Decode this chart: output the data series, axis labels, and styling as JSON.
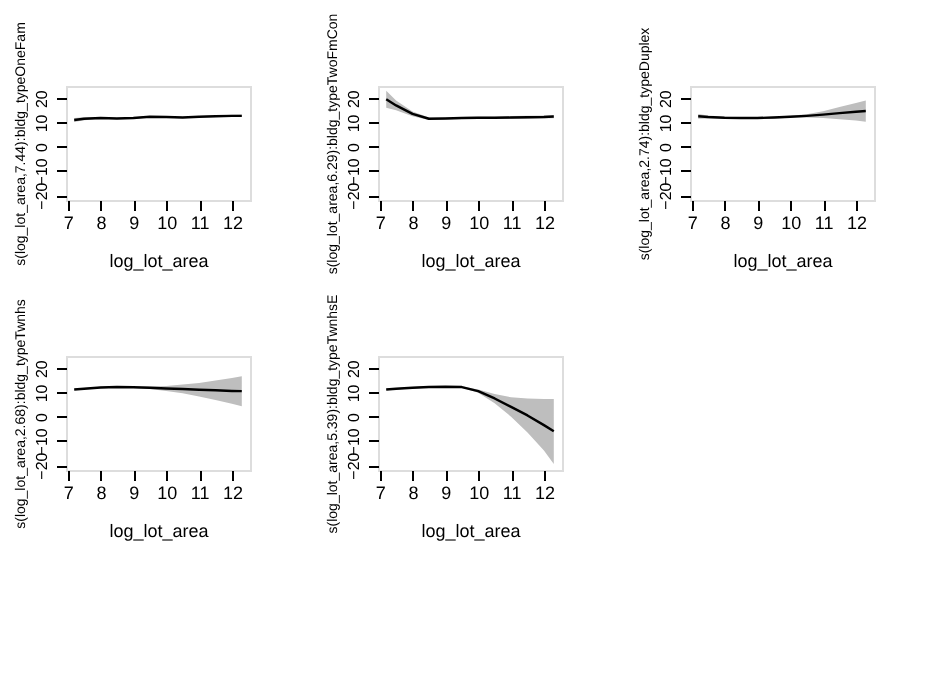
{
  "chart_data": [
    {
      "type": "line",
      "xlabel": "log_lot_area",
      "ylabel": "s(log_lot_area,7.44):bldg_typeOneFam",
      "xlim": [
        6.95,
        12.55
      ],
      "ylim": [
        -22,
        25
      ],
      "xticks": [
        7,
        8,
        9,
        10,
        11,
        12
      ],
      "yticks": [
        -20,
        -10,
        0,
        10,
        20
      ],
      "grid": false,
      "x": [
        7.2,
        7.5,
        8,
        8.5,
        9,
        9.5,
        10,
        10.5,
        11,
        11.5,
        12,
        12.3
      ],
      "series": [
        {
          "color": "#000000",
          "values": [
            11.0,
            11.5,
            11.8,
            11.6,
            11.8,
            12.3,
            12.2,
            12.0,
            12.3,
            12.5,
            12.7,
            12.7
          ],
          "lower": [
            10.2,
            10.9,
            11.4,
            11.3,
            11.5,
            12.0,
            11.9,
            11.7,
            12.0,
            12.2,
            12.3,
            12.2
          ],
          "upper": [
            11.8,
            12.1,
            12.2,
            11.9,
            12.1,
            12.6,
            12.5,
            12.3,
            12.6,
            12.8,
            13.1,
            13.2
          ]
        }
      ]
    },
    {
      "type": "line",
      "xlabel": "log_lot_area",
      "ylabel": "s(log_lot_area,6.29):bldg_typeTwoFmCon",
      "xlim": [
        6.95,
        12.55
      ],
      "ylim": [
        -22,
        25
      ],
      "xticks": [
        7,
        8,
        9,
        10,
        11,
        12
      ],
      "yticks": [
        -20,
        -10,
        0,
        10,
        20
      ],
      "grid": false,
      "x": [
        7.2,
        7.5,
        8,
        8.5,
        9,
        9.5,
        10,
        10.5,
        11,
        11.5,
        12,
        12.3
      ],
      "series": [
        {
          "color": "#000000",
          "values": [
            19.5,
            17.0,
            13.5,
            11.5,
            11.6,
            11.8,
            11.9,
            11.9,
            12.0,
            12.1,
            12.2,
            12.4
          ],
          "lower": [
            16,
            15,
            12.5,
            11,
            11.2,
            11.4,
            11.5,
            11.5,
            11.4,
            11.5,
            11.7,
            11.7
          ],
          "upper": [
            23,
            19,
            14.5,
            12,
            12,
            12.2,
            12.3,
            12.3,
            12.6,
            12.7,
            12.8,
            13
          ]
        }
      ]
    },
    {
      "type": "line",
      "xlabel": "log_lot_area",
      "ylabel": "s(log_lot_area,2.74):bldg_typeDuplex",
      "xlim": [
        6.95,
        12.55
      ],
      "ylim": [
        -22,
        25
      ],
      "xticks": [
        7,
        8,
        9,
        10,
        11,
        12
      ],
      "yticks": [
        -20,
        -10,
        0,
        10,
        20
      ],
      "grid": false,
      "x": [
        7.2,
        7.5,
        8,
        8.5,
        9,
        9.5,
        10,
        10.5,
        11,
        11.5,
        12,
        12.3
      ],
      "series": [
        {
          "color": "#000000",
          "values": [
            12.5,
            12.2,
            11.9,
            11.8,
            11.8,
            12.0,
            12.3,
            12.7,
            13.2,
            13.8,
            14.4,
            14.7
          ],
          "lower": [
            11.5,
            11.6,
            11.5,
            11.4,
            11.4,
            11.6,
            11.9,
            12.0,
            11.8,
            11.3,
            10.8,
            10.3
          ],
          "upper": [
            13.5,
            12.8,
            12.3,
            12.2,
            12.2,
            12.4,
            12.7,
            13.4,
            14.6,
            16.3,
            18.0,
            19.0
          ]
        }
      ]
    },
    {
      "type": "line",
      "xlabel": "log_lot_area",
      "ylabel": "s(log_lot_area,2.68):bldg_typeTwnhs",
      "xlim": [
        6.95,
        12.55
      ],
      "ylim": [
        -22,
        25
      ],
      "xticks": [
        7,
        8,
        9,
        10,
        11,
        12
      ],
      "yticks": [
        -20,
        -10,
        0,
        10,
        20
      ],
      "grid": false,
      "x": [
        7.2,
        7.5,
        8,
        8.5,
        9,
        9.5,
        10,
        10.5,
        11,
        11.5,
        12,
        12.3
      ],
      "series": [
        {
          "color": "#000000",
          "values": [
            11.2,
            11.5,
            12.0,
            12.2,
            12.1,
            11.9,
            11.6,
            11.4,
            11.1,
            10.9,
            10.6,
            10.5
          ],
          "lower": [
            10.9,
            11.2,
            11.7,
            11.9,
            11.8,
            11.4,
            10.6,
            9.6,
            8.3,
            6.9,
            5.3,
            4.3
          ],
          "upper": [
            11.5,
            11.8,
            12.3,
            12.5,
            12.4,
            12.4,
            12.6,
            13.2,
            13.9,
            14.9,
            15.9,
            16.7
          ]
        }
      ]
    },
    {
      "type": "line",
      "xlabel": "log_lot_area",
      "ylabel": "s(log_lot_area,5.39):bldg_typeTwnhsE",
      "xlim": [
        6.95,
        12.55
      ],
      "ylim": [
        -22,
        25
      ],
      "xticks": [
        7,
        8,
        9,
        10,
        11,
        12
      ],
      "yticks": [
        -20,
        -10,
        0,
        10,
        20
      ],
      "grid": false,
      "x": [
        7.2,
        7.5,
        8,
        8.5,
        9,
        9.5,
        10,
        10.5,
        11,
        11.5,
        12,
        12.3
      ],
      "series": [
        {
          "color": "#000000",
          "values": [
            11.2,
            11.5,
            11.9,
            12.2,
            12.3,
            12.2,
            10.5,
            7.5,
            4.0,
            0.5,
            -3.5,
            -6.0
          ],
          "lower": [
            10.9,
            11.2,
            11.6,
            11.9,
            12.0,
            12.0,
            9.8,
            5.5,
            0,
            -6.5,
            -14,
            -19.5
          ],
          "upper": [
            11.5,
            11.8,
            12.2,
            12.5,
            12.6,
            12.5,
            11.2,
            9.3,
            8.0,
            7.5,
            7.3,
            7.3
          ]
        }
      ]
    }
  ]
}
